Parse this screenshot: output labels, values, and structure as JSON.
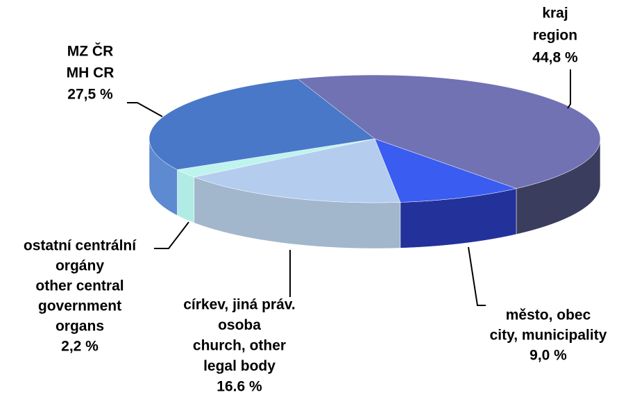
{
  "chart_data": {
    "type": "pie3d",
    "categories": [
      [
        "kraj",
        "region"
      ],
      [
        "město, obec",
        "city, municipality"
      ],
      [
        "církev, jiná práv.",
        "osoba",
        "church, other",
        "legal body"
      ],
      [
        "ostatní centrální",
        "orgány",
        "other central",
        "government",
        "organs"
      ],
      [
        "MZ ČR",
        "MH CR"
      ]
    ],
    "values": [
      44.8,
      9.0,
      16.6,
      2.2,
      27.5
    ],
    "value_labels": [
      "44,8 %",
      "9,0 %",
      "16.6 %",
      "2,2 %",
      "27,5 %"
    ],
    "colors": [
      "#7172b4",
      "#3a5cf0",
      "#b4cdee",
      "#bff3ee",
      "#4a78c8"
    ],
    "side_colors": [
      "#3b3d5e",
      "#23329a",
      "#a2b6cc",
      "#b0ece4",
      "#5d8ad0"
    ]
  }
}
